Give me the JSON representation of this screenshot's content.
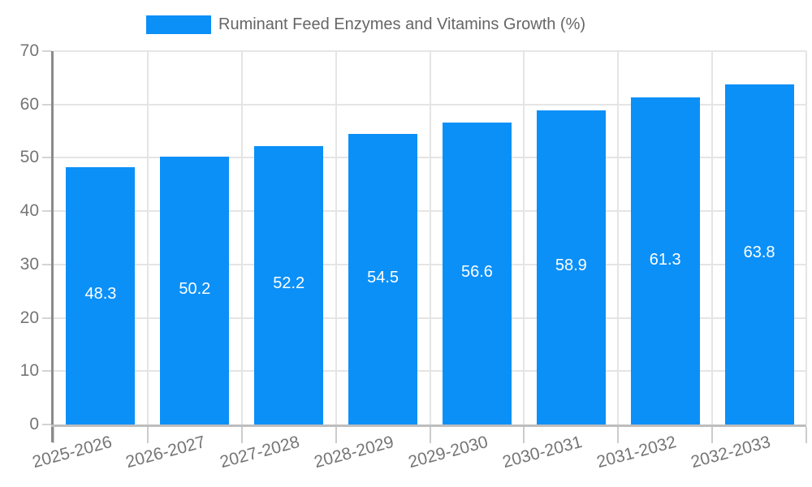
{
  "legend": {
    "series_label": "Ruminant Feed Enzymes and Vitamins Growth (%)"
  },
  "chart_data": {
    "type": "bar",
    "title": "Ruminant Feed Enzymes and Vitamins Growth (%)",
    "categories": [
      "2025-2026",
      "2026-2027",
      "2027-2028",
      "2028-2029",
      "2029-2030",
      "2030-2031",
      "2031-2032",
      "2032-2033"
    ],
    "series": [
      {
        "name": "Ruminant Feed Enzymes and Vitamins Growth (%)",
        "values": [
          48.3,
          50.2,
          52.2,
          54.5,
          56.6,
          58.9,
          61.3,
          63.8
        ]
      }
    ],
    "values": [
      48.3,
      50.2,
      52.2,
      54.5,
      56.6,
      58.9,
      61.3,
      63.8
    ],
    "value_labels": [
      "48.3",
      "50.2",
      "52.2",
      "54.5",
      "56.6",
      "58.9",
      "61.3",
      "63.8"
    ],
    "xlabel": "",
    "ylabel": "",
    "ylim": [
      0,
      70
    ],
    "yticks": [
      0,
      10,
      20,
      30,
      40,
      50,
      60,
      70
    ],
    "grid": true,
    "legend_position": "top-center",
    "colors": {
      "bar": "#0b90f8",
      "value_label": "#ffffff",
      "axis_label": "#757575",
      "legend_text": "#666666",
      "gridline": "#e5e5e5"
    }
  }
}
